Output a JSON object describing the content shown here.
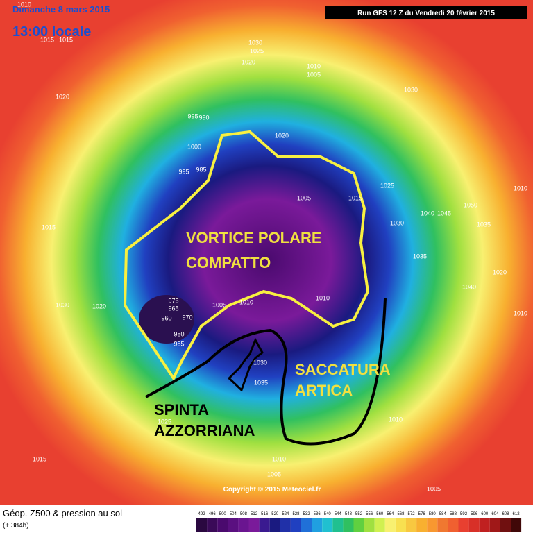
{
  "header": {
    "date": "Dimanche 8 mars 2015",
    "time": "13:00 locale",
    "run": "Run GFS 12 Z du Vendredi 20 février 2015"
  },
  "annotations": {
    "vortex_line1": "VORTICE POLARE",
    "vortex_line2": "COMPATTO",
    "trough_line1": "SACCATURA",
    "trough_line2": "ARTICA",
    "push_line1": "SPINTA",
    "push_line2": "AZZORRIANA"
  },
  "isobars": [
    "1010",
    "1015",
    "1015",
    "1020",
    "1030",
    "1025",
    "1020",
    "1010",
    "1005",
    "995",
    "990",
    "1000",
    "995",
    "985",
    "1020",
    "1030",
    "1005",
    "1015",
    "1025",
    "1030",
    "1040",
    "1045",
    "1050",
    "1035",
    "1010",
    "1035",
    "1020",
    "1040",
    "1015",
    "1010",
    "1020",
    "1030",
    "975",
    "965",
    "960",
    "970",
    "980",
    "985",
    "1005",
    "1010",
    "1010",
    "1030",
    "1035",
    "1025",
    "1015",
    "1010",
    "1010",
    "1005",
    "1005"
  ],
  "copyright": "Copyright © 2015 Meteociel.fr",
  "footer": {
    "title": "Géop. Z500 & pression au sol",
    "lead": "(+ 384h)"
  },
  "colorbar": {
    "labels": [
      "492",
      "496",
      "500",
      "504",
      "508",
      "512",
      "516",
      "520",
      "524",
      "528",
      "532",
      "536",
      "540",
      "544",
      "548",
      "552",
      "556",
      "560",
      "564",
      "568",
      "572",
      "576",
      "580",
      "584",
      "588",
      "592",
      "596",
      "600",
      "604",
      "608",
      "612"
    ]
  }
}
